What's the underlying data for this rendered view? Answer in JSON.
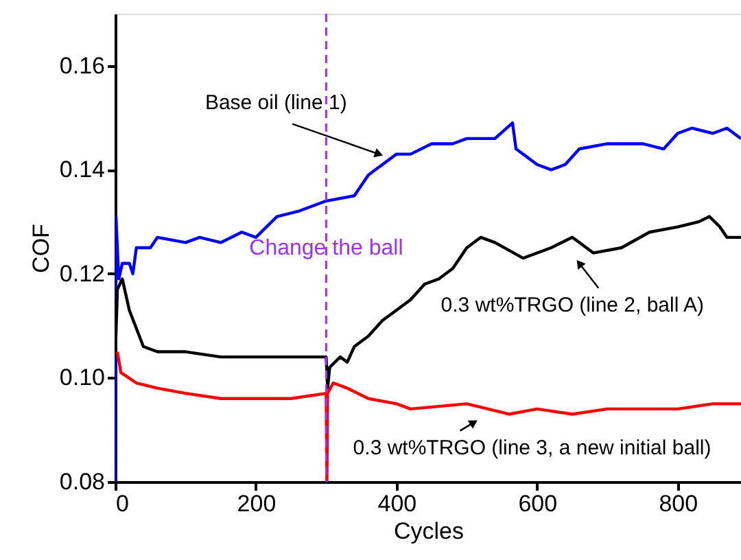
{
  "chart_data": {
    "type": "line",
    "xlabel": "Cycles",
    "ylabel": "COF",
    "xlim": [
      0,
      890
    ],
    "ylim": [
      0.08,
      0.17
    ],
    "xticks": [
      0,
      200,
      400,
      600,
      800
    ],
    "yticks": [
      {
        "value": 0.08,
        "label": "0.08"
      },
      {
        "value": 0.1,
        "label": "0.10"
      },
      {
        "value": 0.12,
        "label": "0.12"
      },
      {
        "value": 0.14,
        "label": "0.14"
      },
      {
        "value": 0.16,
        "label": "0.16"
      }
    ],
    "grid": false,
    "line_style": "solid",
    "marker": "none",
    "series": [
      {
        "color": "#0000ff",
        "x": [
          0,
          1,
          5,
          10,
          20,
          25,
          30,
          50,
          60,
          100,
          120,
          150,
          180,
          200,
          230,
          260,
          300,
          340,
          360,
          380,
          400,
          420,
          450,
          480,
          500,
          540,
          565,
          570,
          600,
          620,
          640,
          660,
          700,
          750,
          780,
          800,
          820,
          850,
          870,
          890
        ],
        "values": [
          0.08,
          0.131,
          0.119,
          0.122,
          0.122,
          0.12,
          0.125,
          0.125,
          0.127,
          0.126,
          0.127,
          0.126,
          0.128,
          0.127,
          0.131,
          0.132,
          0.134,
          0.135,
          0.139,
          0.141,
          0.143,
          0.143,
          0.145,
          0.145,
          0.146,
          0.146,
          0.149,
          0.144,
          0.141,
          0.14,
          0.141,
          0.144,
          0.145,
          0.145,
          0.144,
          0.147,
          0.148,
          0.147,
          0.148,
          0.146
        ]
      },
      {
        "color": "#000000",
        "x": [
          0,
          3,
          10,
          20,
          40,
          60,
          100,
          150,
          200,
          250,
          300,
          302,
          305,
          320,
          330,
          340,
          360,
          380,
          400,
          420,
          440,
          460,
          480,
          500,
          520,
          540,
          580,
          620,
          650,
          680,
          720,
          760,
          800,
          830,
          845,
          860,
          870,
          890
        ],
        "values": [
          0.104,
          0.117,
          0.119,
          0.113,
          0.106,
          0.105,
          0.105,
          0.104,
          0.104,
          0.104,
          0.104,
          0.098,
          0.102,
          0.104,
          0.103,
          0.106,
          0.108,
          0.111,
          0.113,
          0.115,
          0.118,
          0.119,
          0.121,
          0.125,
          0.127,
          0.126,
          0.123,
          0.125,
          0.127,
          0.124,
          0.125,
          0.128,
          0.129,
          0.13,
          0.131,
          0.129,
          0.127,
          0.127
        ]
      },
      {
        "color": "#ff0000",
        "x": [
          3,
          8,
          30,
          60,
          100,
          150,
          250,
          300,
          301,
          302,
          310,
          330,
          360,
          400,
          420,
          500,
          560,
          600,
          650,
          700,
          800,
          850,
          890
        ],
        "values": [
          0.105,
          0.101,
          0.099,
          0.098,
          0.097,
          0.096,
          0.096,
          0.097,
          0.08,
          0.097,
          0.099,
          0.098,
          0.096,
          0.095,
          0.094,
          0.095,
          0.093,
          0.094,
          0.093,
          0.094,
          0.094,
          0.095,
          0.095
        ]
      }
    ],
    "ref_lines": [
      {
        "axis": "x",
        "value": 300,
        "label": "Change the ball",
        "color": "#9b30ff",
        "line_style": "dashed"
      }
    ],
    "annotations": [
      {
        "text": "Base oil (line 1)",
        "x": 375,
        "y": 0.143
      },
      {
        "text": "0.3 wt%TRGO (line 2, ball A)",
        "x": 660,
        "y": 0.122
      },
      {
        "text": "0.3 wt%TRGO (line 3, a new initial ball)",
        "x": 510,
        "y": 0.0914
      }
    ]
  }
}
